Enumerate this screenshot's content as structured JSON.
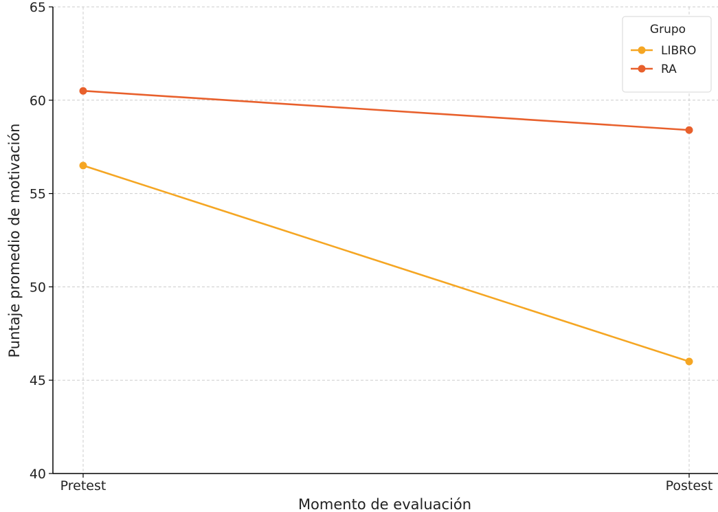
{
  "chart_data": {
    "type": "line",
    "categories": [
      "Pretest",
      "Postest"
    ],
    "series": [
      {
        "name": "LIBRO",
        "color": "#f5a623",
        "values": [
          56.5,
          46.0
        ]
      },
      {
        "name": "RA",
        "color": "#e8602c",
        "values": [
          60.5,
          58.4
        ]
      }
    ],
    "xlabel": "Momento de evaluación",
    "ylabel": "Puntaje promedio de motivación",
    "ylim": [
      40,
      65
    ],
    "yticks": [
      40,
      45,
      50,
      55,
      60,
      65
    ],
    "grid": true,
    "legend": {
      "title": "Grupo",
      "placement": "top-right"
    }
  }
}
